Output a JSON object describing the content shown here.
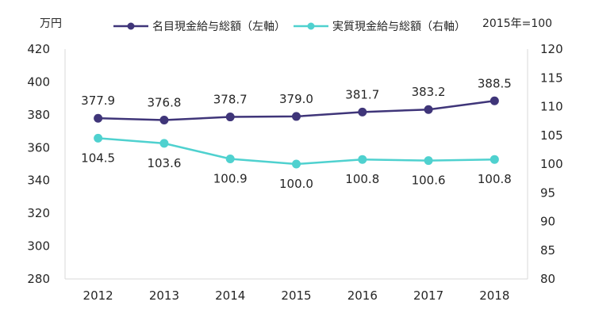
{
  "chart_data": {
    "type": "line",
    "unit_left": "万円",
    "note": "2015年=100",
    "categories": [
      "2012",
      "2013",
      "2014",
      "2015",
      "2016",
      "2017",
      "2018"
    ],
    "y_left": {
      "min": 280,
      "max": 420,
      "step": 20,
      "ticks": [
        "280",
        "300",
        "320",
        "340",
        "360",
        "380",
        "400",
        "420"
      ]
    },
    "y_right": {
      "min": 80,
      "max": 120,
      "step": 5,
      "ticks": [
        "80",
        "85",
        "90",
        "95",
        "100",
        "105",
        "110",
        "115",
        "120"
      ]
    },
    "grid": false,
    "legend_position": "top",
    "series": [
      {
        "name": "名目現金給与総額（左軸）",
        "axis": "left",
        "color": "#3f3579",
        "values": [
          377.9,
          376.8,
          378.7,
          379.0,
          381.7,
          383.2,
          388.5
        ],
        "labels": [
          "377.9",
          "376.8",
          "378.7",
          "379.0",
          "381.7",
          "383.2",
          "388.5"
        ],
        "label_position": "above"
      },
      {
        "name": "実質現金給与総額（右軸）",
        "axis": "right",
        "color": "#4fd1cf",
        "values": [
          104.5,
          103.6,
          100.9,
          100.0,
          100.8,
          100.6,
          100.8
        ],
        "labels": [
          "104.5",
          "103.6",
          "100.9",
          "100.0",
          "100.8",
          "100.6",
          "100.8"
        ],
        "label_position": "below"
      }
    ]
  }
}
